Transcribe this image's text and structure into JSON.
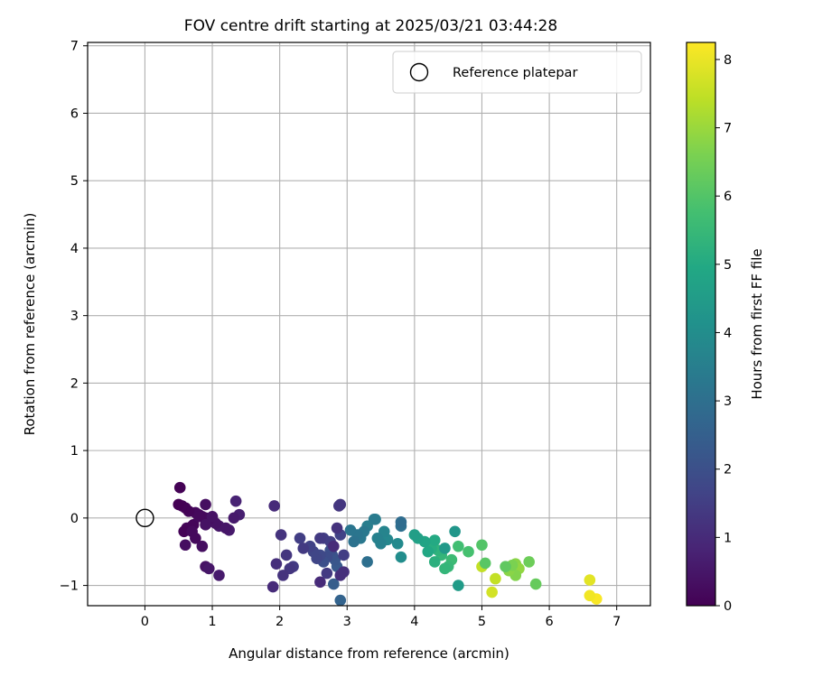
{
  "chart_data": {
    "type": "scatter",
    "title": "FOV centre drift starting at 2025/03/21 03:44:28",
    "xlabel": "Angular distance from reference (arcmin)",
    "ylabel": "Rotation from reference (arcmin)",
    "xlim": [
      -0.85,
      7.5
    ],
    "ylim": [
      -1.3,
      7.05
    ],
    "xticks": [
      0,
      1,
      2,
      3,
      4,
      5,
      6,
      7
    ],
    "yticks": [
      -1,
      0,
      1,
      2,
      3,
      4,
      5,
      6,
      7
    ],
    "grid": true,
    "legend": {
      "placement": "top-right",
      "entries": [
        "Reference platepar"
      ]
    },
    "reference_point": {
      "x": 0,
      "y": 0,
      "label": "Reference platepar"
    },
    "colorbar": {
      "label": "Hours from first FF file",
      "range": [
        0,
        8.25
      ],
      "ticks": [
        0,
        1,
        2,
        3,
        4,
        5,
        6,
        7,
        8
      ],
      "colormap": "viridis"
    },
    "series": [
      {
        "x": [
          6.7,
          6.6,
          6.6,
          5.15,
          5.2,
          5.0,
          5.5,
          5.55,
          5.5,
          5.4,
          5.45,
          5.7,
          5.8,
          5.35,
          5.05,
          5.0,
          4.8,
          4.65,
          4.55,
          4.5,
          4.45,
          4.4,
          4.35,
          4.3,
          4.25,
          4.3,
          4.2,
          4.15,
          4.05,
          4.0,
          4.65,
          4.45,
          4.6,
          3.8,
          3.75,
          3.6,
          3.55,
          3.5,
          3.45,
          3.42,
          3.4,
          3.3,
          3.25,
          3.2,
          3.15,
          3.1,
          3.05,
          3.3,
          3.8,
          3.8,
          2.9,
          2.8,
          2.85,
          2.82,
          2.78,
          2.75,
          2.7,
          2.65,
          2.6,
          2.55,
          2.5,
          2.45,
          2.65,
          2.75,
          2.9,
          2.95,
          2.3,
          2.35,
          2.2,
          2.1,
          2.15,
          2.05,
          2.02,
          1.95,
          1.9,
          1.92,
          2.6,
          2.8,
          2.9,
          2.95,
          2.85,
          2.9,
          2.88,
          2.7,
          2.6,
          1.35,
          1.4,
          1.32,
          1.25,
          1.2,
          1.1,
          1.05,
          1.0,
          0.95,
          0.9,
          0.85,
          0.8,
          0.75,
          0.72,
          0.7,
          0.65,
          0.62,
          0.6,
          0.58,
          0.55,
          0.52,
          0.5,
          0.85,
          0.9,
          0.95,
          0.9,
          1.1,
          0.7,
          0.6,
          0.75,
          0.8,
          0.9,
          1.0
        ],
        "y": [
          -1.2,
          -1.15,
          -0.92,
          -1.1,
          -0.9,
          -0.72,
          -0.68,
          -0.75,
          -0.85,
          -0.78,
          -0.7,
          -0.65,
          -0.98,
          -0.72,
          -0.67,
          -0.4,
          -0.5,
          -0.42,
          -0.62,
          -0.72,
          -0.75,
          -0.55,
          -0.48,
          -0.65,
          -0.45,
          -0.33,
          -0.5,
          -0.35,
          -0.3,
          -0.25,
          -1.0,
          -0.45,
          -0.2,
          -0.58,
          -0.38,
          -0.32,
          -0.2,
          -0.38,
          -0.3,
          -0.02,
          -0.02,
          -0.12,
          -0.2,
          -0.3,
          -0.25,
          -0.35,
          -0.18,
          -0.65,
          -0.12,
          -0.06,
          -1.22,
          -0.98,
          -0.72,
          -0.62,
          -0.55,
          -0.48,
          -0.58,
          -0.65,
          -0.55,
          -0.6,
          -0.5,
          -0.42,
          -0.3,
          -0.35,
          -0.25,
          -0.55,
          -0.3,
          -0.45,
          -0.72,
          -0.55,
          -0.75,
          -0.85,
          -0.25,
          -0.68,
          -1.02,
          0.18,
          -0.95,
          -0.42,
          -0.85,
          -0.8,
          -0.15,
          0.2,
          0.18,
          -0.82,
          -0.3,
          0.25,
          0.05,
          0.0,
          -0.18,
          -0.15,
          -0.12,
          -0.08,
          -0.05,
          -0.02,
          0.0,
          0.02,
          0.05,
          0.08,
          -0.1,
          -0.12,
          0.1,
          -0.15,
          0.15,
          -0.2,
          0.18,
          0.45,
          0.2,
          -0.42,
          -0.72,
          -0.75,
          0.2,
          -0.85,
          -0.2,
          -0.4,
          -0.3,
          0.02,
          -0.1,
          0.02
        ],
        "color_value": [
          8.2,
          8.1,
          7.9,
          7.7,
          7.5,
          7.5,
          6.8,
          6.9,
          6.7,
          6.8,
          6.6,
          6.4,
          6.3,
          6.2,
          6.1,
          6.0,
          5.8,
          5.7,
          5.6,
          5.5,
          5.4,
          5.4,
          5.3,
          5.2,
          5.1,
          5.0,
          4.9,
          4.8,
          4.7,
          4.6,
          4.5,
          4.4,
          4.3,
          4.0,
          3.9,
          3.8,
          3.7,
          3.6,
          3.6,
          3.5,
          3.4,
          3.5,
          3.3,
          3.3,
          3.2,
          3.1,
          3.2,
          3.0,
          3.0,
          2.9,
          2.6,
          2.4,
          2.3,
          2.2,
          2.1,
          2.0,
          1.9,
          2.0,
          1.8,
          1.7,
          1.7,
          1.6,
          1.5,
          1.5,
          1.6,
          1.5,
          1.5,
          1.4,
          1.4,
          1.3,
          1.3,
          1.2,
          1.2,
          1.1,
          1.0,
          1.0,
          1.0,
          1.0,
          1.1,
          1.1,
          1.2,
          1.3,
          1.3,
          1.4,
          1.4,
          0.8,
          0.7,
          0.6,
          0.6,
          0.5,
          0.5,
          0.4,
          0.4,
          0.3,
          0.3,
          0.2,
          0.2,
          0.2,
          0.1,
          0.1,
          0.1,
          0.1,
          0.05,
          0.05,
          0.05,
          0.02,
          0.0,
          0.3,
          0.4,
          0.5,
          0.3,
          0.6,
          0.2,
          0.3,
          0.2,
          0.2,
          0.4,
          0.4
        ]
      }
    ]
  }
}
